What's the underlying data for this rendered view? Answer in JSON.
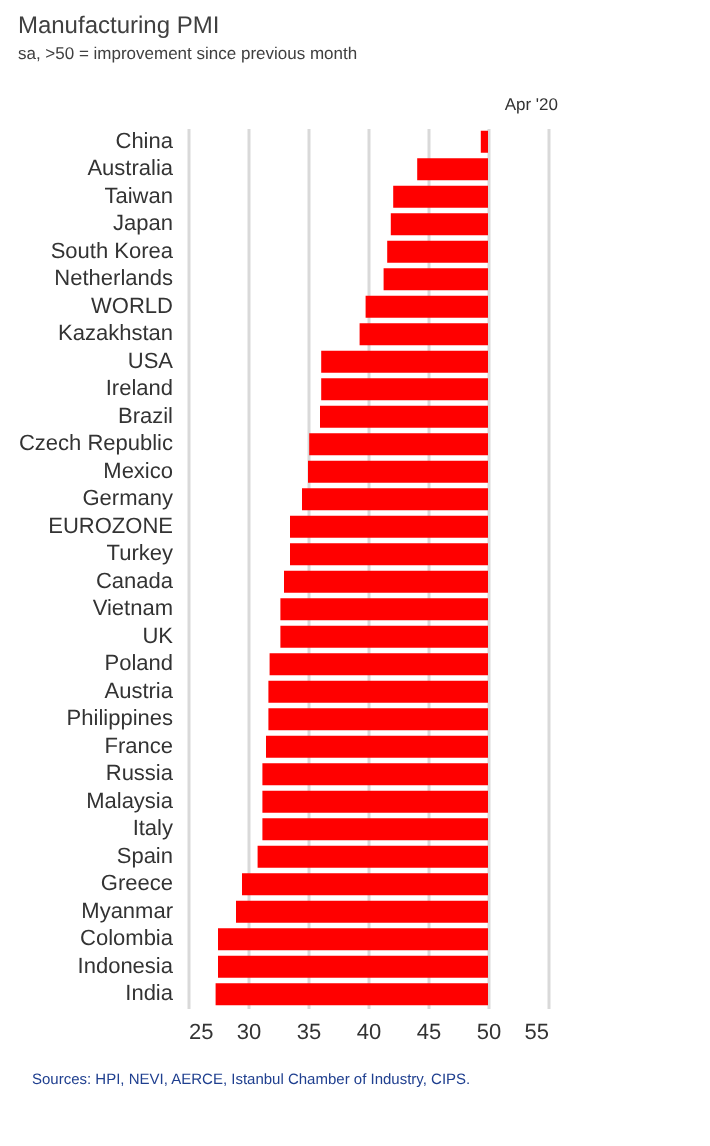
{
  "chart_data": {
    "type": "bar",
    "orientation": "horizontal",
    "title": "Manufacturing PMI",
    "subtitle": "sa, >50 = improvement since previous month",
    "categories": [
      "China",
      "Australia",
      "Taiwan",
      "Japan",
      "South Korea",
      "Netherlands",
      "WORLD",
      "Kazakhstan",
      "USA",
      "Ireland",
      "Brazil",
      "Czech Republic",
      "Mexico",
      "Germany",
      "EUROZONE",
      "Turkey",
      "Canada",
      "Vietnam",
      "UK",
      "Poland",
      "Austria",
      "Philippines",
      "France",
      "Russia",
      "Malaysia",
      "Italy",
      "Spain",
      "Greece",
      "Myanmar",
      "Colombia",
      "Indonesia",
      "India"
    ],
    "base": [
      50,
      50,
      50,
      50,
      50,
      50,
      50,
      50,
      50,
      50,
      50,
      50,
      50,
      50,
      50,
      50,
      50,
      50,
      50,
      50,
      50,
      50,
      50,
      50,
      50,
      50,
      50,
      50,
      50,
      50,
      50,
      50
    ],
    "values": [
      -0.6,
      -5.9,
      -7.9,
      -8.1,
      -8.4,
      -8.7,
      -10.2,
      -10.7,
      -13.9,
      -13.9,
      -14.0,
      -14.9,
      -15.0,
      -15.5,
      -16.5,
      -16.5,
      -17.0,
      -17.3,
      -17.3,
      -18.2,
      -18.3,
      -18.3,
      -18.5,
      -18.8,
      -18.8,
      -18.8,
      -19.2,
      -20.5,
      -21.0,
      -22.5,
      -22.5,
      -22.7
    ],
    "color": "#ff0000",
    "xlim": [
      25,
      55
    ],
    "xticks": [
      25,
      30,
      35,
      40,
      45,
      50,
      55
    ],
    "grid": "x",
    "annotations": [
      "Apr '20",
      "Sources: HPI, NEVI, AERCE, Istanbul Chamber of Industry, CIPS."
    ]
  }
}
